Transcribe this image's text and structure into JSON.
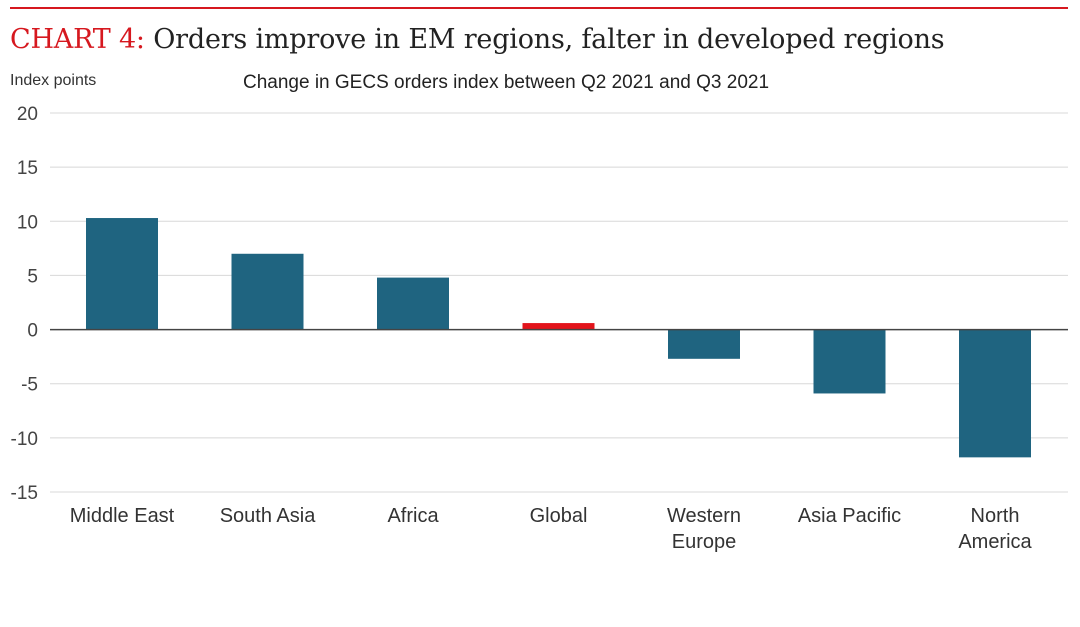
{
  "header": {
    "chart_label": "CHART 4:",
    "title": "Orders improve in EM regions, falter in developed regions"
  },
  "chart_data": {
    "type": "bar",
    "title": "CHART 4: Orders improve in EM regions, falter in developed regions",
    "subtitle": "Change in GECS orders index between Q2 2021 and Q3 2021",
    "xlabel": "",
    "ylabel": "Index points",
    "ylim": [
      -15,
      20
    ],
    "yticks": [
      20,
      15,
      10,
      5,
      0,
      -5,
      -10,
      -15
    ],
    "grid": true,
    "categories": [
      "Middle East",
      "South Asia",
      "Africa",
      "Global",
      "Western Europe",
      "Asia Pacific",
      "North America"
    ],
    "category_lines": [
      [
        "Middle East"
      ],
      [
        "South Asia"
      ],
      [
        "Africa"
      ],
      [
        "Global"
      ],
      [
        "Western",
        "Europe"
      ],
      [
        "Asia Pacific"
      ],
      [
        "North",
        "America"
      ]
    ],
    "values": [
      10.3,
      7.0,
      4.8,
      0.6,
      -2.7,
      -5.9,
      -11.8
    ],
    "colors": {
      "default": "#1f6480",
      "highlight": "#e2141b",
      "highlight_category": "Global",
      "grid": "#d8d8d8",
      "zero_line": "#444444",
      "accent": "#d6181f"
    }
  }
}
